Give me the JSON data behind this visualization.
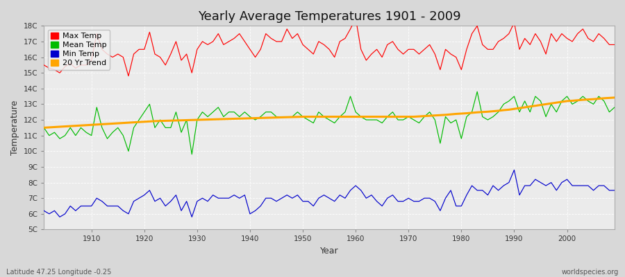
{
  "title": "Yearly Average Temperatures 1901 - 2009",
  "xlabel": "Year",
  "ylabel": "Temperature",
  "subtitle_left": "Latitude 47.25 Longitude -0.25",
  "subtitle_right": "worldspecies.org",
  "fig_bg_color": "#e0e0e0",
  "plot_bg_color": "#f0f0f0",
  "grid_color": "#cccccc",
  "years": [
    1901,
    1902,
    1903,
    1904,
    1905,
    1906,
    1907,
    1908,
    1909,
    1910,
    1911,
    1912,
    1913,
    1914,
    1915,
    1916,
    1917,
    1918,
    1919,
    1920,
    1921,
    1922,
    1923,
    1924,
    1925,
    1926,
    1927,
    1928,
    1929,
    1930,
    1931,
    1932,
    1933,
    1934,
    1935,
    1936,
    1937,
    1938,
    1939,
    1940,
    1941,
    1942,
    1943,
    1944,
    1945,
    1946,
    1947,
    1948,
    1949,
    1950,
    1951,
    1952,
    1953,
    1954,
    1955,
    1956,
    1957,
    1958,
    1959,
    1960,
    1961,
    1962,
    1963,
    1964,
    1965,
    1966,
    1967,
    1968,
    1969,
    1970,
    1971,
    1972,
    1973,
    1974,
    1975,
    1976,
    1977,
    1978,
    1979,
    1980,
    1981,
    1982,
    1983,
    1984,
    1985,
    1986,
    1987,
    1988,
    1989,
    1990,
    1991,
    1992,
    1993,
    1994,
    1995,
    1996,
    1997,
    1998,
    1999,
    2000,
    2001,
    2002,
    2003,
    2004,
    2005,
    2006,
    2007,
    2008,
    2009
  ],
  "max_temp": [
    15.5,
    15.3,
    15.2,
    15.0,
    15.4,
    15.6,
    15.3,
    15.5,
    15.5,
    15.8,
    17.5,
    16.5,
    16.2,
    16.0,
    16.2,
    16.0,
    14.8,
    16.2,
    16.5,
    16.5,
    17.6,
    16.2,
    16.0,
    15.5,
    16.2,
    17.0,
    15.8,
    16.2,
    15.0,
    16.5,
    17.0,
    16.8,
    17.0,
    17.5,
    16.8,
    17.0,
    17.2,
    17.5,
    17.0,
    16.5,
    16.0,
    16.5,
    17.5,
    17.2,
    17.0,
    17.0,
    17.8,
    17.2,
    17.5,
    16.8,
    16.5,
    16.2,
    17.0,
    16.8,
    16.5,
    16.0,
    17.0,
    17.2,
    17.8,
    18.5,
    16.5,
    15.8,
    16.2,
    16.5,
    16.0,
    16.8,
    17.0,
    16.5,
    16.2,
    16.5,
    16.5,
    16.2,
    16.5,
    16.8,
    16.2,
    15.2,
    16.5,
    16.2,
    16.0,
    15.2,
    16.5,
    17.5,
    18.0,
    16.8,
    16.5,
    16.5,
    17.0,
    17.2,
    17.5,
    18.2,
    16.5,
    17.2,
    16.8,
    17.5,
    17.0,
    16.2,
    17.5,
    17.0,
    17.5,
    17.2,
    17.0,
    17.5,
    17.8,
    17.2,
    17.0,
    17.5,
    17.2,
    16.8,
    16.8
  ],
  "mean_temp": [
    11.5,
    11.0,
    11.2,
    10.8,
    11.0,
    11.5,
    11.0,
    11.5,
    11.2,
    11.0,
    12.8,
    11.5,
    10.8,
    11.2,
    11.5,
    11.0,
    10.0,
    11.5,
    12.0,
    12.5,
    13.0,
    11.5,
    12.0,
    11.5,
    11.5,
    12.5,
    11.2,
    12.0,
    9.8,
    12.0,
    12.5,
    12.2,
    12.5,
    12.8,
    12.2,
    12.5,
    12.5,
    12.2,
    12.5,
    12.2,
    12.0,
    12.2,
    12.5,
    12.5,
    12.2,
    12.2,
    12.2,
    12.2,
    12.5,
    12.2,
    12.0,
    11.8,
    12.5,
    12.2,
    12.0,
    11.8,
    12.2,
    12.5,
    13.5,
    12.5,
    12.2,
    12.0,
    12.0,
    12.0,
    11.8,
    12.2,
    12.5,
    12.0,
    12.0,
    12.2,
    12.0,
    11.8,
    12.2,
    12.5,
    12.0,
    10.5,
    12.2,
    11.8,
    12.0,
    10.8,
    12.2,
    12.5,
    13.8,
    12.2,
    12.0,
    12.2,
    12.5,
    13.0,
    13.2,
    13.5,
    12.5,
    13.2,
    12.5,
    13.5,
    13.2,
    12.2,
    13.0,
    12.5,
    13.2,
    13.5,
    13.0,
    13.2,
    13.5,
    13.2,
    13.0,
    13.5,
    13.2,
    12.5,
    12.8
  ],
  "min_temp": [
    6.2,
    6.0,
    6.2,
    5.8,
    6.0,
    6.5,
    6.2,
    6.5,
    6.5,
    6.5,
    7.0,
    6.8,
    6.5,
    6.5,
    6.5,
    6.2,
    6.0,
    6.8,
    7.0,
    7.2,
    7.5,
    6.8,
    7.0,
    6.5,
    6.8,
    7.2,
    6.2,
    6.8,
    5.8,
    6.8,
    7.0,
    6.8,
    7.2,
    7.0,
    7.0,
    7.0,
    7.2,
    7.0,
    7.2,
    6.0,
    6.2,
    6.5,
    7.0,
    7.0,
    6.8,
    7.0,
    7.2,
    7.0,
    7.2,
    6.8,
    6.8,
    6.5,
    7.0,
    7.2,
    7.0,
    6.8,
    7.2,
    7.0,
    7.5,
    7.8,
    7.5,
    7.0,
    7.2,
    6.8,
    6.5,
    7.0,
    7.2,
    6.8,
    6.8,
    7.0,
    6.8,
    6.8,
    7.0,
    7.0,
    6.8,
    6.2,
    7.0,
    7.5,
    6.5,
    6.5,
    7.2,
    7.8,
    7.5,
    7.5,
    7.2,
    7.8,
    7.5,
    7.8,
    8.0,
    8.8,
    7.2,
    7.8,
    7.8,
    8.2,
    8.0,
    7.8,
    8.0,
    7.5,
    8.0,
    8.2,
    7.8,
    7.8,
    7.8,
    7.8,
    7.5,
    7.8,
    7.8,
    7.5,
    7.5
  ],
  "trend": [
    11.5,
    11.52,
    11.54,
    11.56,
    11.58,
    11.6,
    11.62,
    11.64,
    11.66,
    11.68,
    11.7,
    11.72,
    11.74,
    11.76,
    11.78,
    11.8,
    11.82,
    11.84,
    11.86,
    11.88,
    11.9,
    11.92,
    11.93,
    11.94,
    11.95,
    11.96,
    11.97,
    11.98,
    11.99,
    12.0,
    12.01,
    12.02,
    12.03,
    12.04,
    12.05,
    12.06,
    12.07,
    12.08,
    12.09,
    12.1,
    12.11,
    12.12,
    12.13,
    12.14,
    12.15,
    12.16,
    12.17,
    12.18,
    12.19,
    12.2,
    12.2,
    12.2,
    12.2,
    12.2,
    12.2,
    12.2,
    12.2,
    12.2,
    12.2,
    12.2,
    12.2,
    12.2,
    12.2,
    12.2,
    12.2,
    12.2,
    12.2,
    12.2,
    12.2,
    12.2,
    12.2,
    12.22,
    12.24,
    12.26,
    12.28,
    12.3,
    12.32,
    12.35,
    12.38,
    12.4,
    12.42,
    12.45,
    12.48,
    12.5,
    12.52,
    12.55,
    12.58,
    12.62,
    12.65,
    12.7,
    12.75,
    12.8,
    12.85,
    12.9,
    12.95,
    13.0,
    13.05,
    13.1,
    13.15,
    13.2,
    13.22,
    13.25,
    13.28,
    13.3,
    13.32,
    13.35,
    13.38,
    13.4,
    13.42
  ],
  "max_color": "#ff0000",
  "mean_color": "#00bb00",
  "min_color": "#0000cc",
  "trend_color": "#ffa500",
  "ylim_min": 5,
  "ylim_max": 18,
  "ytick_labels": [
    "5C",
    "6C",
    "7C",
    "8C",
    "9C",
    "10C",
    "11C",
    "12C",
    "13C",
    "14C",
    "15C",
    "16C",
    "17C",
    "18C"
  ],
  "ytick_values": [
    5,
    6,
    7,
    8,
    9,
    10,
    11,
    12,
    13,
    14,
    15,
    16,
    17,
    18
  ],
  "xtick_values": [
    1910,
    1920,
    1930,
    1940,
    1950,
    1960,
    1970,
    1980,
    1990,
    2000
  ],
  "legend_labels": [
    "Max Temp",
    "Mean Temp",
    "Min Temp",
    "20 Yr Trend"
  ],
  "legend_colors": [
    "#ff0000",
    "#00bb00",
    "#0000cc",
    "#ffa500"
  ]
}
